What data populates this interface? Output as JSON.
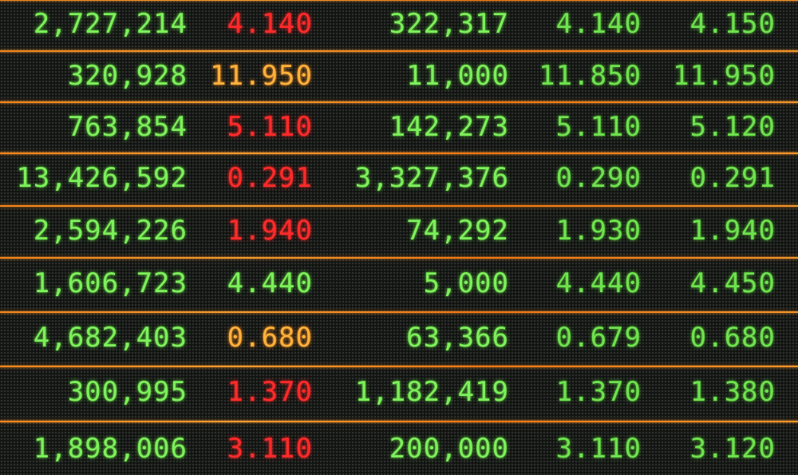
{
  "colors": {
    "green": "#7cf05a",
    "red": "#ff2a2a",
    "amber": "#ffb03a",
    "separator": "#ff8a1a",
    "background": "#101210"
  },
  "rows": [
    {
      "volume": "2,727,214",
      "price": "4.140",
      "price_color": "red",
      "bid_size": "322,317",
      "bid": "4.140",
      "ask": "4.150"
    },
    {
      "volume": "320,928",
      "price": "11.950",
      "price_color": "amber",
      "bid_size": "11,000",
      "bid": "11.850",
      "ask": "11.950"
    },
    {
      "volume": "763,854",
      "price": "5.110",
      "price_color": "red",
      "bid_size": "142,273",
      "bid": "5.110",
      "ask": "5.120"
    },
    {
      "volume": "13,426,592",
      "price": "0.291",
      "price_color": "red",
      "bid_size": "3,327,376",
      "bid": "0.290",
      "ask": "0.291"
    },
    {
      "volume": "2,594,226",
      "price": "1.940",
      "price_color": "red",
      "bid_size": "74,292",
      "bid": "1.930",
      "ask": "1.940"
    },
    {
      "volume": "1,606,723",
      "price": "4.440",
      "price_color": "green",
      "bid_size": "5,000",
      "bid": "4.440",
      "ask": "4.450"
    },
    {
      "volume": "4,682,403",
      "price": "0.680",
      "price_color": "amber",
      "bid_size": "63,366",
      "bid": "0.679",
      "ask": "0.680"
    },
    {
      "volume": "300,995",
      "price": "1.370",
      "price_color": "red",
      "bid_size": "1,182,419",
      "bid": "1.370",
      "ask": "1.380"
    },
    {
      "volume": "1,898,006",
      "price": "3.110",
      "price_color": "red",
      "bid_size": "200,000",
      "bid": "3.110",
      "ask": "3.120"
    }
  ]
}
